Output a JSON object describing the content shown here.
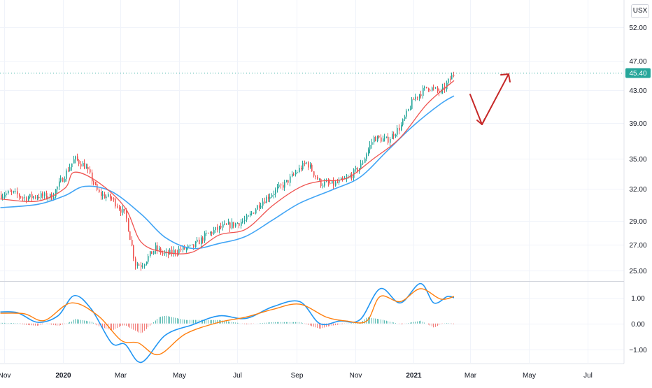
{
  "header": {
    "currency": "USX"
  },
  "price_label": {
    "value": "45.40",
    "color": "#26a69a"
  },
  "colors": {
    "up": "#26a69a",
    "down": "#ef5350",
    "ema_fast": "#ef5350",
    "ema_slow": "#42a5f5",
    "macd": "#2196f3",
    "signal": "#ff7f0e",
    "arrow": "#c62828"
  },
  "chart_data": [
    {
      "type": "line",
      "title": "",
      "x_tick_labels": [
        "Nov",
        "2020",
        "Mar",
        "May",
        "Jul",
        "Sep",
        "Nov",
        "2021",
        "Mar",
        "May",
        "Jul"
      ],
      "y_ticks": [
        25.0,
        27.0,
        29.0,
        32.0,
        35.0,
        39.0,
        43.0,
        47.0,
        52.0
      ],
      "y_tick_labels": [
        "25.00",
        "27.00",
        "29.00",
        "32.00",
        "35.00",
        "39.00",
        "43.00",
        "47.00",
        "52.00"
      ],
      "scale": "log",
      "ylim": [
        24.2,
        56.5
      ],
      "series": [
        {
          "kind": "close",
          "dates": [
            "2019-10-28",
            "2019-11-08",
            "2019-11-22",
            "2019-12-06",
            "2019-12-20",
            "2020-01-03",
            "2020-01-13",
            "2020-01-24",
            "2020-02-07",
            "2020-02-21",
            "2020-03-06",
            "2020-03-16",
            "2020-03-23",
            "2020-04-06",
            "2020-04-17",
            "2020-05-01",
            "2020-05-15",
            "2020-05-29",
            "2020-06-12",
            "2020-06-26",
            "2020-07-10",
            "2020-07-24",
            "2020-08-07",
            "2020-08-21",
            "2020-09-04",
            "2020-09-11",
            "2020-09-25",
            "2020-10-09",
            "2020-10-23",
            "2020-11-06",
            "2020-11-20",
            "2020-12-04",
            "2020-12-18",
            "2021-01-01",
            "2021-01-15",
            "2021-01-29",
            "2021-02-12"
          ],
          "values": [
            31.4,
            31.6,
            31.1,
            31.3,
            31.2,
            33.4,
            35.0,
            34.2,
            31.5,
            31.0,
            29.5,
            25.5,
            25.4,
            26.7,
            26.2,
            26.6,
            26.8,
            27.8,
            28.4,
            28.7,
            29.1,
            30.6,
            31.6,
            32.6,
            34.0,
            34.6,
            32.5,
            32.4,
            32.9,
            34.2,
            37.3,
            37.0,
            38.6,
            42.0,
            43.5,
            42.7,
            45.4
          ]
        },
        {
          "name": "",
          "kind": "ema_fast",
          "dates": [
            "2019-10-28",
            "2019-12-06",
            "2020-01-03",
            "2020-01-13",
            "2020-02-07",
            "2020-03-06",
            "2020-03-23",
            "2020-04-17",
            "2020-05-15",
            "2020-06-12",
            "2020-07-10",
            "2020-08-07",
            "2020-09-04",
            "2020-09-25",
            "2020-10-23",
            "2020-11-20",
            "2020-12-18",
            "2021-01-15",
            "2021-02-12"
          ],
          "values": [
            31.0,
            30.8,
            32.0,
            33.6,
            32.6,
            30.2,
            27.2,
            26.4,
            26.4,
            27.8,
            28.3,
            30.4,
            32.1,
            32.7,
            33.0,
            35.0,
            37.3,
            41.3,
            44.3
          ]
        },
        {
          "name": "",
          "kind": "ema_slow",
          "dates": [
            "2019-10-28",
            "2019-12-06",
            "2020-01-03",
            "2020-01-24",
            "2020-02-21",
            "2020-03-23",
            "2020-04-17",
            "2020-05-15",
            "2020-06-12",
            "2020-07-10",
            "2020-08-07",
            "2020-09-04",
            "2020-10-09",
            "2020-11-06",
            "2020-12-04",
            "2021-01-01",
            "2021-01-29",
            "2021-02-12"
          ],
          "values": [
            30.2,
            30.5,
            31.3,
            32.2,
            31.7,
            29.6,
            27.6,
            26.7,
            27.1,
            27.7,
            29.1,
            30.6,
            31.9,
            33.1,
            35.8,
            38.7,
            41.3,
            42.3
          ]
        }
      ]
    },
    {
      "type": "line",
      "title": "",
      "y_ticks": [
        1.0,
        0.0,
        -1.0
      ],
      "y_tick_labels": [
        "1.00",
        "0.00",
        "−1.00"
      ],
      "ylim": [
        -1.52,
        1.62
      ],
      "series": [
        {
          "name": "",
          "kind": "macd",
          "dates": [
            "2019-10-28",
            "2019-11-15",
            "2019-12-06",
            "2019-12-27",
            "2020-01-13",
            "2020-01-31",
            "2020-02-21",
            "2020-03-06",
            "2020-03-23",
            "2020-04-17",
            "2020-05-15",
            "2020-06-12",
            "2020-07-10",
            "2020-08-07",
            "2020-09-04",
            "2020-09-25",
            "2020-10-16",
            "2020-11-06",
            "2020-11-27",
            "2020-12-18",
            "2021-01-08",
            "2021-01-22",
            "2021-02-05",
            "2021-02-12"
          ],
          "values": [
            0.45,
            0.42,
            0.05,
            0.3,
            1.08,
            0.55,
            -0.75,
            -0.8,
            -1.5,
            -0.45,
            -0.05,
            0.3,
            0.2,
            0.65,
            0.85,
            0.0,
            0.1,
            0.15,
            1.35,
            0.8,
            1.55,
            0.8,
            1.05,
            1.0
          ]
        },
        {
          "name": "",
          "kind": "signal",
          "dates": [
            "2019-10-28",
            "2019-11-22",
            "2019-12-13",
            "2020-01-10",
            "2020-02-07",
            "2020-03-02",
            "2020-03-20",
            "2020-04-10",
            "2020-05-08",
            "2020-06-12",
            "2020-07-10",
            "2020-08-07",
            "2020-09-04",
            "2020-10-02",
            "2020-10-23",
            "2020-11-13",
            "2020-11-27",
            "2020-12-18",
            "2021-01-08",
            "2021-01-29",
            "2021-02-12"
          ],
          "values": [
            0.4,
            0.38,
            0.12,
            0.8,
            0.3,
            -0.65,
            -0.75,
            -1.2,
            -0.4,
            0.05,
            0.25,
            0.55,
            0.75,
            0.25,
            0.1,
            0.1,
            1.05,
            0.85,
            1.35,
            0.95,
            1.05
          ]
        }
      ]
    }
  ]
}
